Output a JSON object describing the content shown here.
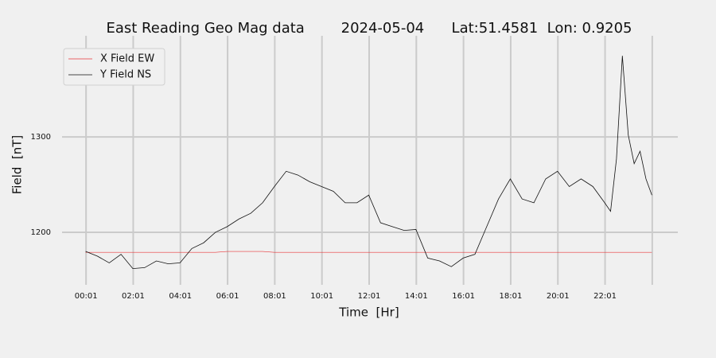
{
  "chart_data": {
    "type": "line",
    "title": "East Reading Geo Mag data        2024-05-04      Lat:51.4581  Lon: 0.9205",
    "xlabel": "Time  [Hr]",
    "ylabel": "Field  [nT]",
    "x": [
      0,
      0.5,
      1,
      1.5,
      2,
      2.5,
      3,
      3.5,
      4,
      4.5,
      5,
      5.5,
      6,
      6.5,
      7,
      7.5,
      8,
      8.5,
      9,
      9.5,
      10,
      10.5,
      11,
      11.5,
      12,
      12.5,
      13,
      13.5,
      14,
      14.5,
      15,
      15.5,
      16,
      16.5,
      17,
      17.5,
      18,
      18.5,
      19,
      19.5,
      20,
      20.5,
      21,
      21.5,
      22,
      22.25,
      22.5,
      22.75,
      23,
      23.25,
      23.5,
      23.75,
      24
    ],
    "series": [
      {
        "name": "X Field EW",
        "color": "#e8373a",
        "values": [
          1179,
          1179,
          1179,
          1179,
          1179,
          1179,
          1179,
          1179,
          1179,
          1179,
          1179,
          1179,
          1180,
          1180,
          1180,
          1180,
          1179,
          1179,
          1179,
          1179,
          1179,
          1179,
          1179,
          1179,
          1179,
          1179,
          1179,
          1179,
          1179,
          1179,
          1179,
          1179,
          1179,
          1179,
          1179,
          1179,
          1179,
          1179,
          1179,
          1179,
          1179,
          1179,
          1179,
          1179,
          1179,
          1179,
          1179,
          1179,
          1179,
          1179,
          1179,
          1179,
          1179
        ]
      },
      {
        "name": "Y Field NS",
        "color": "#111111",
        "values": [
          1180,
          1175,
          1168,
          1177,
          1162,
          1163,
          1170,
          1167,
          1168,
          1183,
          1189,
          1200,
          1206,
          1214,
          1220,
          1231,
          1248,
          1264,
          1260,
          1253,
          1248,
          1243,
          1231,
          1231,
          1239,
          1210,
          1206,
          1202,
          1203,
          1173,
          1170,
          1164,
          1173,
          1177,
          1206,
          1235,
          1256,
          1235,
          1231,
          1256,
          1264,
          1248,
          1256,
          1248,
          1231,
          1222,
          1277,
          1385,
          1302,
          1272,
          1285,
          1256,
          1239
        ]
      }
    ],
    "xlim": [
      -1.0,
      25.1
    ],
    "xticks": [
      {
        "value": 0.0167,
        "label": "00:01"
      },
      {
        "value": 2.0167,
        "label": "02:01"
      },
      {
        "value": 4.0167,
        "label": "04:01"
      },
      {
        "value": 6.0167,
        "label": "06:01"
      },
      {
        "value": 8.0167,
        "label": "08:01"
      },
      {
        "value": 10.0167,
        "label": "10:01"
      },
      {
        "value": 12.0167,
        "label": "12:01"
      },
      {
        "value": 14.0167,
        "label": "14:01"
      },
      {
        "value": 16.0167,
        "label": "16:01"
      },
      {
        "value": 18.0167,
        "label": "18:01"
      },
      {
        "value": 20.0167,
        "label": "20:01"
      },
      {
        "value": 22.0167,
        "label": "22:01"
      },
      {
        "value": 24.0167,
        "label": null
      }
    ],
    "ylim": [
      1145,
      1406
    ],
    "yticks": [
      1200,
      1300
    ],
    "grid": true,
    "legend": "upper left"
  }
}
